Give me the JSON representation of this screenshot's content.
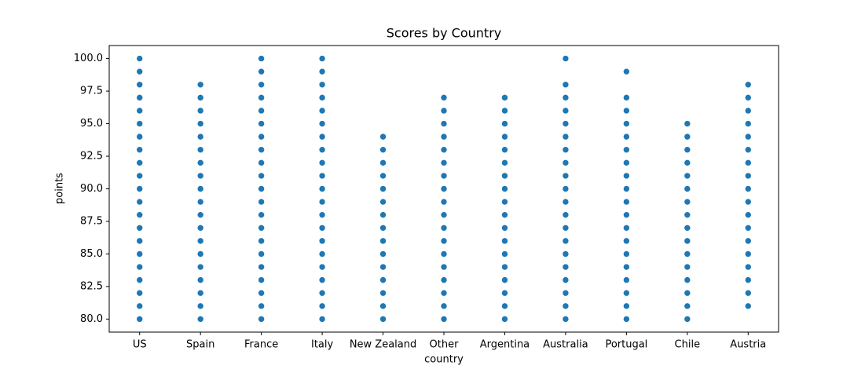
{
  "chart_data": {
    "type": "scatter",
    "title": "Scores by Country",
    "x_label": "country",
    "y_label": "points",
    "categories": [
      "US",
      "Spain",
      "France",
      "Italy",
      "New Zealand",
      "Other",
      "Argentina",
      "Australia",
      "Portugal",
      "Chile",
      "Austria"
    ],
    "values": [
      [
        80,
        81,
        82,
        83,
        84,
        85,
        86,
        87,
        88,
        89,
        90,
        91,
        92,
        93,
        94,
        95,
        96,
        97,
        98,
        99,
        100
      ],
      [
        80,
        81,
        82,
        83,
        84,
        85,
        86,
        87,
        88,
        89,
        90,
        91,
        92,
        93,
        94,
        95,
        96,
        97,
        98
      ],
      [
        80,
        81,
        82,
        83,
        84,
        85,
        86,
        87,
        88,
        89,
        90,
        91,
        92,
        93,
        94,
        95,
        96,
        97,
        98,
        99,
        100
      ],
      [
        80,
        81,
        82,
        83,
        84,
        85,
        86,
        87,
        88,
        89,
        90,
        91,
        92,
        93,
        94,
        95,
        96,
        97,
        98,
        99,
        100
      ],
      [
        80,
        81,
        82,
        83,
        84,
        85,
        86,
        87,
        88,
        89,
        90,
        91,
        92,
        93,
        94
      ],
      [
        80,
        81,
        82,
        83,
        84,
        85,
        86,
        87,
        88,
        89,
        90,
        91,
        92,
        93,
        94,
        95,
        96,
        97
      ],
      [
        80,
        81,
        82,
        83,
        84,
        85,
        86,
        87,
        88,
        89,
        90,
        91,
        92,
        93,
        94,
        95,
        96,
        97
      ],
      [
        80,
        81,
        82,
        83,
        84,
        85,
        86,
        87,
        88,
        89,
        90,
        91,
        92,
        93,
        94,
        95,
        96,
        97,
        98,
        100
      ],
      [
        80,
        81,
        82,
        83,
        84,
        85,
        86,
        87,
        88,
        89,
        90,
        91,
        92,
        93,
        94,
        95,
        96,
        97,
        99
      ],
      [
        80,
        81,
        82,
        83,
        84,
        85,
        86,
        87,
        88,
        89,
        90,
        91,
        92,
        93,
        94,
        95
      ],
      [
        81,
        82,
        83,
        84,
        85,
        86,
        87,
        88,
        89,
        90,
        91,
        92,
        93,
        94,
        95,
        96,
        97,
        98
      ]
    ],
    "color": "#1f77b4",
    "ylim": [
      79,
      101
    ],
    "yticks": [
      {
        "value": 80,
        "label": "80.0"
      },
      {
        "value": 82.5,
        "label": "82.5"
      },
      {
        "value": 85,
        "label": "85.0"
      },
      {
        "value": 87.5,
        "label": "87.5"
      },
      {
        "value": 90,
        "label": "90.0"
      },
      {
        "value": 92.5,
        "label": "92.5"
      },
      {
        "value": 95,
        "label": "95.0"
      },
      {
        "value": 97.5,
        "label": "97.5"
      },
      {
        "value": 100,
        "label": "100.0"
      }
    ]
  }
}
